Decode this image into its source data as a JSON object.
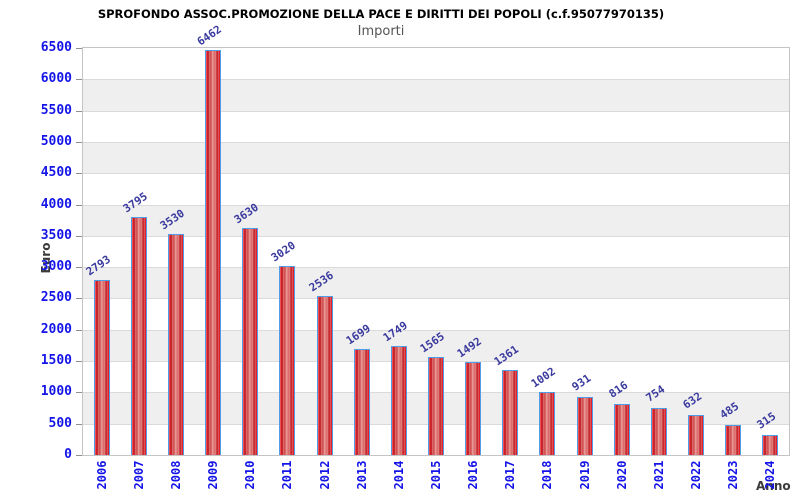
{
  "chart_data": {
    "type": "bar",
    "title": "SPROFONDO ASSOC.PROMOZIONE DELLA PACE E DIRITTI DEI POPOLI (c.f.95077970135)",
    "subtitle": "Importi",
    "xlabel": "Anno",
    "ylabel": "Euro",
    "categories": [
      "2006",
      "2007",
      "2008",
      "2009",
      "2010",
      "2011",
      "2012",
      "2013",
      "2014",
      "2015",
      "2016",
      "2017",
      "2018",
      "2019",
      "2020",
      "2021",
      "2022",
      "2023",
      "2024"
    ],
    "values": [
      2793,
      3795,
      3530,
      6462,
      3630,
      3020,
      2536,
      1699,
      1749,
      1565,
      1492,
      1361,
      1002,
      931,
      816,
      754,
      632,
      485,
      315
    ],
    "value_labels": [
      "2793",
      "3795",
      "3530",
      "6462",
      "3630",
      "3020",
      "2536",
      "1699",
      "1749",
      "1565",
      "1492",
      "1361",
      "1002",
      "931",
      "816",
      "754",
      "632",
      "485",
      "315"
    ],
    "ylim": [
      0,
      6500
    ],
    "ytick_step": 500,
    "yticks": [
      0,
      500,
      1000,
      1500,
      2000,
      2500,
      3000,
      3500,
      4000,
      4500,
      5000,
      5500,
      6000,
      6500
    ],
    "grid": "horizontal gridlines with alternating background bands",
    "legend": "none",
    "colors": {
      "bar_edge": "#f32028",
      "bar_dark": "#c22025",
      "bar_light": "#e58884",
      "bar_border": "#4f9ce8",
      "band_gray": "#efefef",
      "grid_line": "#dadada",
      "plot_border": "#c4c4c4",
      "tick_label": "#1414e8",
      "value_label": "#3a3a9f",
      "axis_title": "#3a3a3a",
      "title": "#000000",
      "subtitle": "#555555"
    }
  }
}
